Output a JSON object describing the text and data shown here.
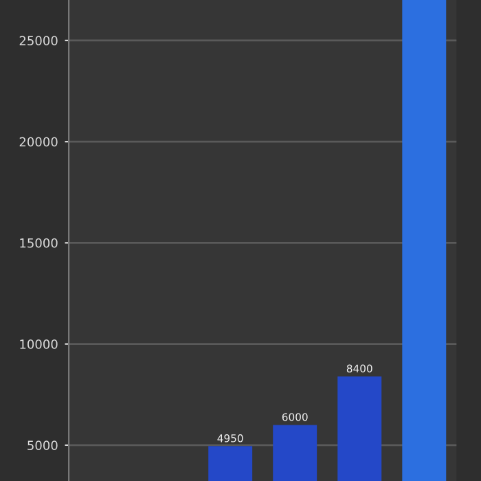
{
  "chart_data": {
    "type": "bar",
    "categories": [
      null,
      null,
      null,
      null,
      null,
      null
    ],
    "values": [
      null,
      null,
      4950,
      6000,
      8400,
      27000
    ],
    "colors": [
      "#2448c8",
      "#2448c8",
      "#2448c8",
      "#2448c8",
      "#2448c8",
      "#2c6fe0"
    ],
    "value_labels": [
      null,
      null,
      "4950",
      "6000",
      "8400",
      null
    ],
    "ylim": [
      3230,
      27000
    ],
    "yticks": [
      5000,
      10000,
      15000,
      20000,
      25000
    ],
    "grid": "y",
    "tick_labels": "y"
  }
}
